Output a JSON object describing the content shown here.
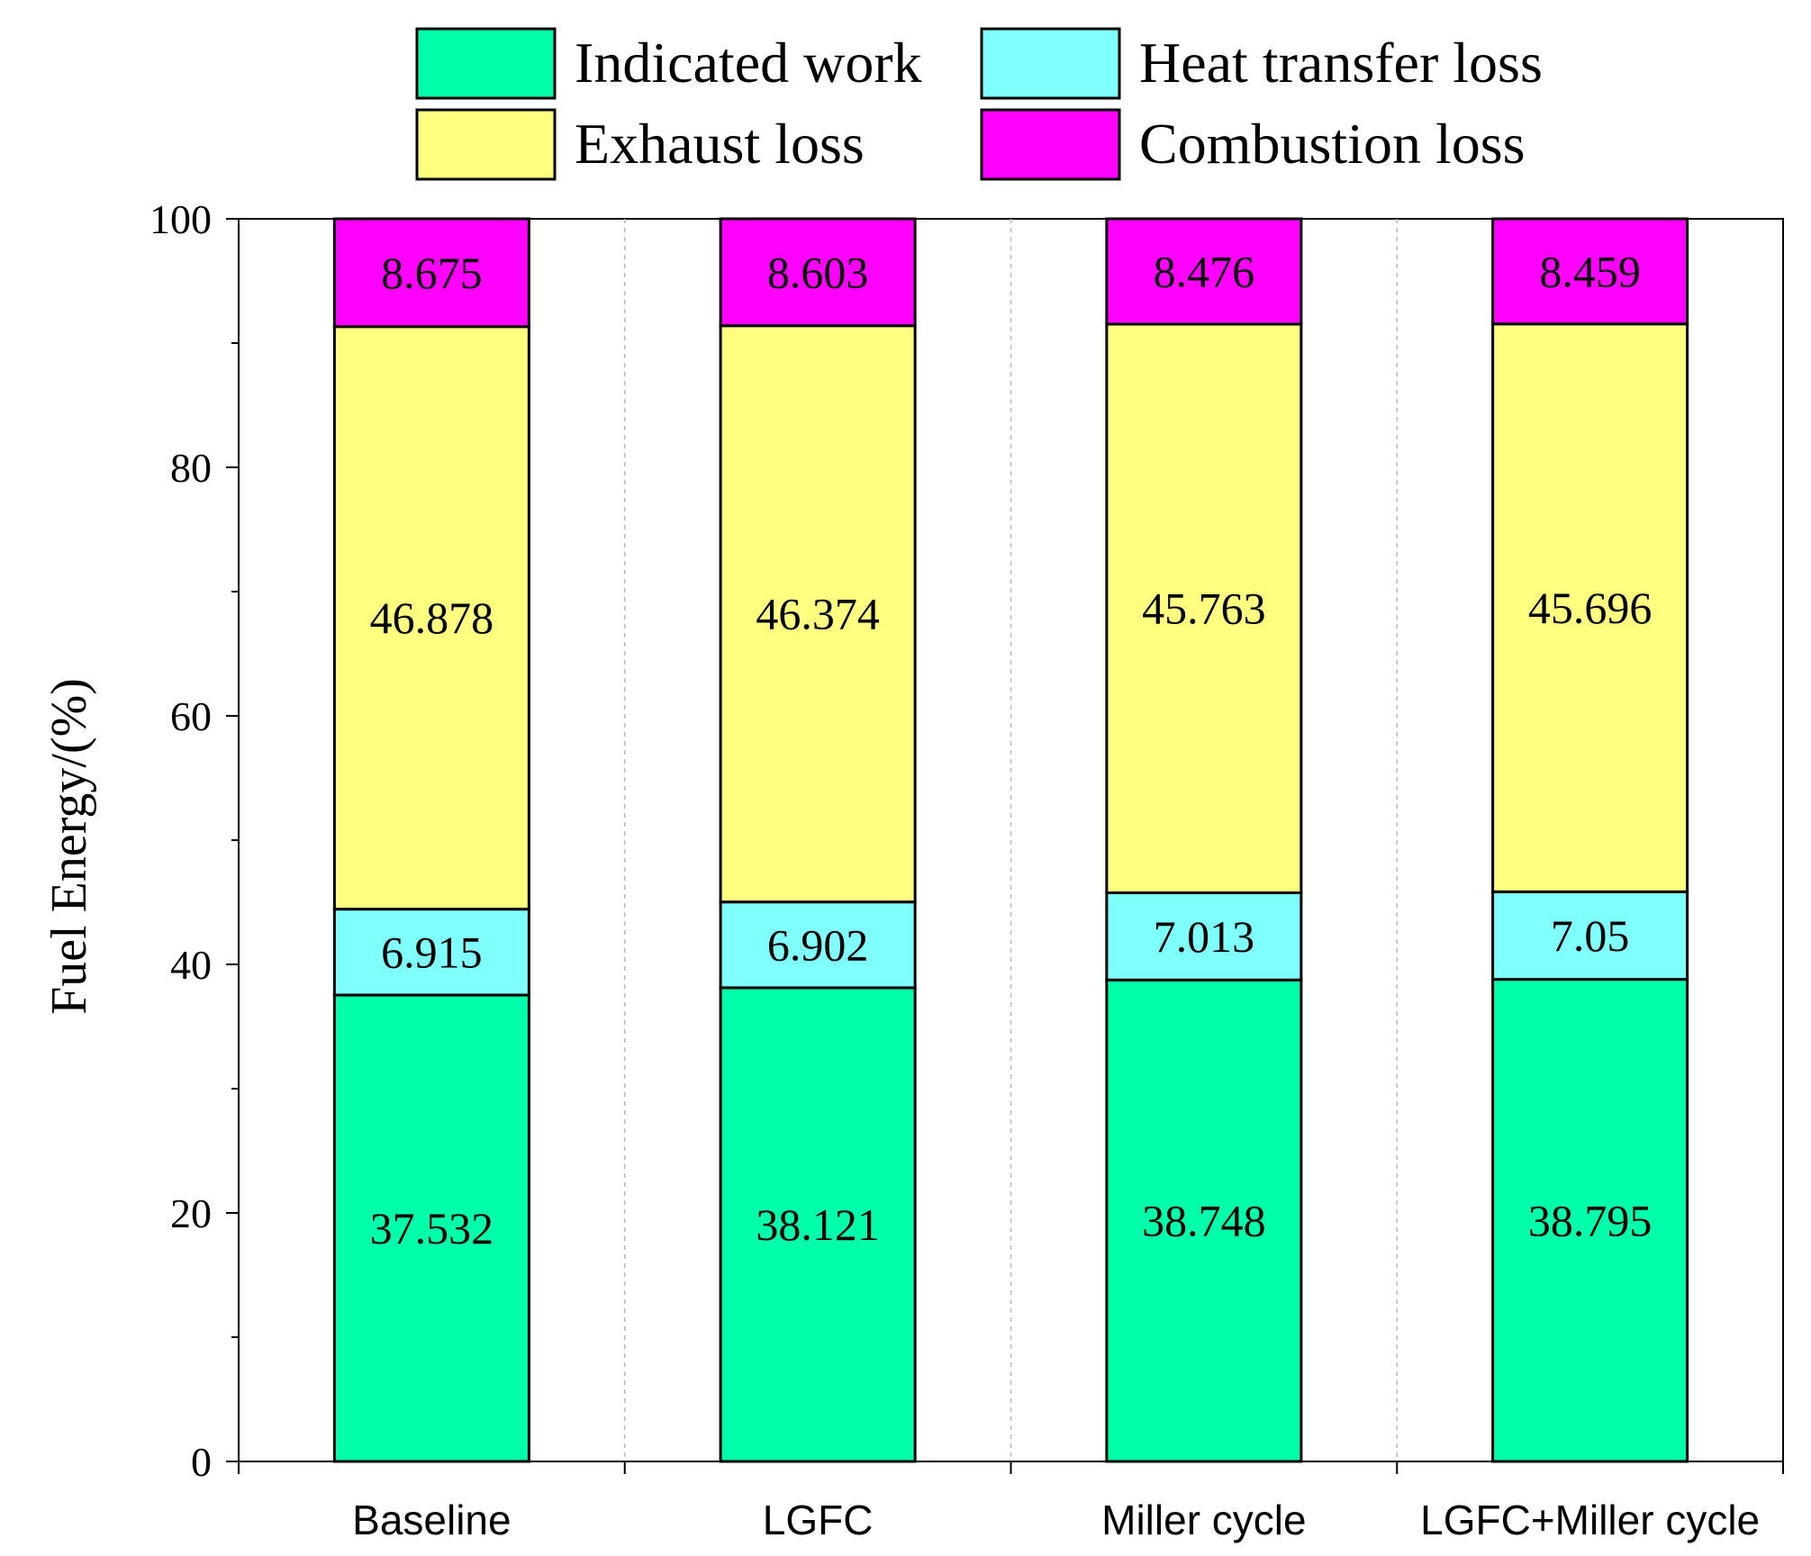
{
  "chart_data": {
    "type": "bar",
    "stacked": true,
    "title": "",
    "xlabel": "",
    "ylabel": "Fuel Energy/(%)",
    "ylim": [
      0,
      100
    ],
    "yticks": [
      "0",
      "20",
      "40",
      "60",
      "80",
      "100"
    ],
    "categories": [
      "Baseline",
      "LGFC",
      "Miller cycle",
      "LGFC+Miller cycle"
    ],
    "series": [
      {
        "name": "Indicated work",
        "color": "#00FFAA",
        "values": [
          37.532,
          38.121,
          38.748,
          38.795
        ],
        "labels": [
          "37.532",
          "38.121",
          "38.748",
          "38.795"
        ]
      },
      {
        "name": "Heat transfer loss",
        "color": "#80FFFF",
        "values": [
          6.915,
          6.902,
          7.013,
          7.05
        ],
        "labels": [
          "6.915",
          "6.902",
          "7.013",
          "7.05"
        ]
      },
      {
        "name": "Exhaust loss",
        "color": "#FFFF80",
        "values": [
          46.878,
          46.374,
          45.763,
          45.696
        ],
        "labels": [
          "46.878",
          "46.374",
          "45.763",
          "45.696"
        ]
      },
      {
        "name": "Combustion loss",
        "color": "#FF00FF",
        "values": [
          8.675,
          8.603,
          8.476,
          8.459
        ],
        "labels": [
          "8.675",
          "8.603",
          "8.476",
          "8.459"
        ]
      }
    ],
    "legend_position": "top",
    "grid": "vertical dashed separators between categories"
  }
}
